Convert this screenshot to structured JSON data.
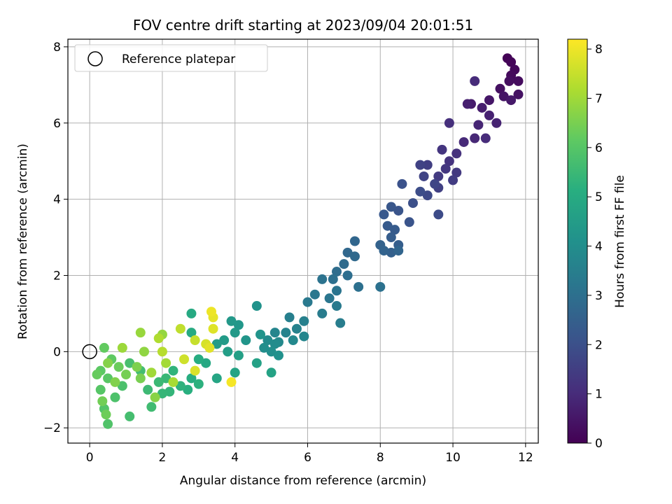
{
  "chart_data": {
    "type": "scatter",
    "title": "FOV centre drift starting at 2023/09/04 20:01:51",
    "xlabel": "Angular distance from reference (arcmin)",
    "ylabel": "Rotation from reference (arcmin)",
    "xlim": [
      -0.6,
      12.35
    ],
    "ylim": [
      -2.4,
      8.2
    ],
    "xticks": [
      0,
      2,
      4,
      6,
      8,
      10,
      12
    ],
    "yticks": [
      -2,
      0,
      2,
      4,
      6,
      8
    ],
    "xtick_labels": [
      "0",
      "2",
      "4",
      "6",
      "8",
      "10",
      "12"
    ],
    "ytick_labels": [
      "−2",
      "0",
      "2",
      "4",
      "6",
      "8"
    ],
    "grid": true,
    "legend": {
      "placement": "top-left",
      "entries": [
        {
          "label": "Reference platepar",
          "marker": "open-circle",
          "x": 0,
          "y": 0
        }
      ]
    },
    "colorbar": {
      "label": "Hours from first FF file",
      "colormap": "viridis",
      "range": [
        0,
        8.2
      ],
      "ticks": [
        0,
        1,
        2,
        3,
        4,
        5,
        6,
        7,
        8
      ],
      "tick_labels": [
        "0",
        "1",
        "2",
        "3",
        "4",
        "5",
        "6",
        "7",
        "8"
      ]
    },
    "series": [
      {
        "value_key": "hours",
        "points": [
          {
            "x": 11.5,
            "y": 7.7,
            "h": 0.05
          },
          {
            "x": 11.6,
            "y": 7.6,
            "h": 0.1
          },
          {
            "x": 11.7,
            "y": 7.4,
            "h": 0.15
          },
          {
            "x": 11.6,
            "y": 7.25,
            "h": 0.2
          },
          {
            "x": 11.8,
            "y": 7.1,
            "h": 0.25
          },
          {
            "x": 11.55,
            "y": 7.1,
            "h": 0.3
          },
          {
            "x": 11.3,
            "y": 6.9,
            "h": 0.35
          },
          {
            "x": 11.8,
            "y": 6.75,
            "h": 0.4
          },
          {
            "x": 11.4,
            "y": 6.7,
            "h": 0.45
          },
          {
            "x": 11.0,
            "y": 6.6,
            "h": 0.5
          },
          {
            "x": 11.6,
            "y": 6.6,
            "h": 0.55
          },
          {
            "x": 10.5,
            "y": 6.5,
            "h": 0.6
          },
          {
            "x": 10.8,
            "y": 6.4,
            "h": 0.65
          },
          {
            "x": 10.4,
            "y": 6.5,
            "h": 0.7
          },
          {
            "x": 11.0,
            "y": 6.2,
            "h": 0.75
          },
          {
            "x": 11.2,
            "y": 6.0,
            "h": 0.8
          },
          {
            "x": 10.7,
            "y": 5.95,
            "h": 0.85
          },
          {
            "x": 10.6,
            "y": 5.6,
            "h": 0.9
          },
          {
            "x": 10.3,
            "y": 5.5,
            "h": 0.95
          },
          {
            "x": 10.6,
            "y": 7.1,
            "h": 1.0
          },
          {
            "x": 10.9,
            "y": 5.6,
            "h": 1.0
          },
          {
            "x": 9.9,
            "y": 6.0,
            "h": 1.1
          },
          {
            "x": 10.1,
            "y": 5.2,
            "h": 1.15
          },
          {
            "x": 9.9,
            "y": 5.0,
            "h": 1.2
          },
          {
            "x": 9.7,
            "y": 5.3,
            "h": 1.25
          },
          {
            "x": 9.8,
            "y": 4.8,
            "h": 1.3
          },
          {
            "x": 10.1,
            "y": 4.7,
            "h": 1.35
          },
          {
            "x": 9.6,
            "y": 4.6,
            "h": 1.4
          },
          {
            "x": 10.0,
            "y": 4.5,
            "h": 1.45
          },
          {
            "x": 9.3,
            "y": 4.9,
            "h": 1.5
          },
          {
            "x": 9.6,
            "y": 4.3,
            "h": 1.55
          },
          {
            "x": 9.1,
            "y": 4.9,
            "h": 1.6
          },
          {
            "x": 9.2,
            "y": 4.6,
            "h": 1.65
          },
          {
            "x": 9.5,
            "y": 4.4,
            "h": 1.7
          },
          {
            "x": 9.3,
            "y": 4.1,
            "h": 1.8
          },
          {
            "x": 9.6,
            "y": 3.6,
            "h": 1.85
          },
          {
            "x": 9.1,
            "y": 4.2,
            "h": 1.9
          },
          {
            "x": 8.9,
            "y": 3.9,
            "h": 2.0
          },
          {
            "x": 8.6,
            "y": 4.4,
            "h": 2.05
          },
          {
            "x": 8.8,
            "y": 3.4,
            "h": 2.1
          },
          {
            "x": 8.5,
            "y": 3.7,
            "h": 2.15
          },
          {
            "x": 8.3,
            "y": 3.8,
            "h": 2.2
          },
          {
            "x": 8.1,
            "y": 3.6,
            "h": 2.25
          },
          {
            "x": 8.2,
            "y": 3.3,
            "h": 2.3
          },
          {
            "x": 8.4,
            "y": 3.2,
            "h": 2.35
          },
          {
            "x": 8.3,
            "y": 3.0,
            "h": 2.4
          },
          {
            "x": 8.5,
            "y": 2.8,
            "h": 2.45
          },
          {
            "x": 8.3,
            "y": 2.6,
            "h": 2.5
          },
          {
            "x": 8.0,
            "y": 2.8,
            "h": 2.55
          },
          {
            "x": 8.1,
            "y": 2.65,
            "h": 2.6
          },
          {
            "x": 8.5,
            "y": 2.65,
            "h": 2.65
          },
          {
            "x": 7.3,
            "y": 2.9,
            "h": 2.7
          },
          {
            "x": 7.1,
            "y": 2.6,
            "h": 2.75
          },
          {
            "x": 7.3,
            "y": 2.5,
            "h": 2.8
          },
          {
            "x": 7.0,
            "y": 2.3,
            "h": 2.85
          },
          {
            "x": 6.8,
            "y": 2.1,
            "h": 2.9
          },
          {
            "x": 7.1,
            "y": 2.0,
            "h": 2.95
          },
          {
            "x": 6.7,
            "y": 1.9,
            "h": 3.0
          },
          {
            "x": 7.4,
            "y": 1.7,
            "h": 3.0
          },
          {
            "x": 8.0,
            "y": 1.7,
            "h": 3.05
          },
          {
            "x": 6.4,
            "y": 1.9,
            "h": 3.1
          },
          {
            "x": 6.8,
            "y": 1.6,
            "h": 3.15
          },
          {
            "x": 6.6,
            "y": 1.4,
            "h": 3.2
          },
          {
            "x": 6.2,
            "y": 1.5,
            "h": 3.25
          },
          {
            "x": 6.0,
            "y": 1.3,
            "h": 3.3
          },
          {
            "x": 6.8,
            "y": 1.2,
            "h": 3.35
          },
          {
            "x": 6.4,
            "y": 1.0,
            "h": 3.4
          },
          {
            "x": 6.9,
            "y": 0.75,
            "h": 3.45
          },
          {
            "x": 5.5,
            "y": 0.9,
            "h": 3.5
          },
          {
            "x": 5.9,
            "y": 0.8,
            "h": 3.55
          },
          {
            "x": 5.7,
            "y": 0.6,
            "h": 3.6
          },
          {
            "x": 5.4,
            "y": 0.5,
            "h": 3.65
          },
          {
            "x": 5.1,
            "y": 0.5,
            "h": 3.7
          },
          {
            "x": 5.9,
            "y": 0.4,
            "h": 3.75
          },
          {
            "x": 5.6,
            "y": 0.3,
            "h": 3.8
          },
          {
            "x": 5.2,
            "y": 0.25,
            "h": 3.85
          },
          {
            "x": 4.9,
            "y": 0.3,
            "h": 3.9
          },
          {
            "x": 5.1,
            "y": 0.2,
            "h": 3.95
          },
          {
            "x": 4.8,
            "y": 0.1,
            "h": 4.0
          },
          {
            "x": 5.0,
            "y": 0.0,
            "h": 4.05
          },
          {
            "x": 5.2,
            "y": -0.1,
            "h": 4.1
          },
          {
            "x": 4.6,
            "y": 1.2,
            "h": 4.15
          },
          {
            "x": 4.7,
            "y": 0.45,
            "h": 4.2
          },
          {
            "x": 4.3,
            "y": 0.3,
            "h": 4.25
          },
          {
            "x": 4.1,
            "y": 0.7,
            "h": 4.3
          },
          {
            "x": 3.9,
            "y": 0.8,
            "h": 4.35
          },
          {
            "x": 4.0,
            "y": 0.5,
            "h": 4.4
          },
          {
            "x": 3.7,
            "y": 0.3,
            "h": 4.45
          },
          {
            "x": 3.5,
            "y": 0.2,
            "h": 4.5
          },
          {
            "x": 3.8,
            "y": 0.0,
            "h": 4.55
          },
          {
            "x": 4.1,
            "y": -0.1,
            "h": 4.6
          },
          {
            "x": 4.6,
            "y": -0.3,
            "h": 4.65
          },
          {
            "x": 5.0,
            "y": -0.55,
            "h": 4.7
          },
          {
            "x": 4.0,
            "y": -0.55,
            "h": 4.75
          },
          {
            "x": 3.5,
            "y": -0.7,
            "h": 4.8
          },
          {
            "x": 3.2,
            "y": -0.3,
            "h": 4.9
          },
          {
            "x": 2.8,
            "y": 1.0,
            "h": 4.95
          },
          {
            "x": 2.8,
            "y": 0.5,
            "h": 5.0
          },
          {
            "x": 3.0,
            "y": -0.2,
            "h": 5.05
          },
          {
            "x": 2.8,
            "y": -0.7,
            "h": 5.1
          },
          {
            "x": 2.7,
            "y": -1.0,
            "h": 5.15
          },
          {
            "x": 3.0,
            "y": -0.85,
            "h": 5.2
          },
          {
            "x": 2.5,
            "y": -0.9,
            "h": 5.25
          },
          {
            "x": 2.3,
            "y": -0.5,
            "h": 5.3
          },
          {
            "x": 2.2,
            "y": -1.05,
            "h": 5.35
          },
          {
            "x": 2.0,
            "y": -1.1,
            "h": 5.4
          },
          {
            "x": 2.1,
            "y": -0.7,
            "h": 5.45
          },
          {
            "x": 1.9,
            "y": -0.8,
            "h": 5.5
          },
          {
            "x": 1.6,
            "y": -1.0,
            "h": 5.55
          },
          {
            "x": 1.7,
            "y": -1.45,
            "h": 5.6
          },
          {
            "x": 1.4,
            "y": -0.5,
            "h": 5.65
          },
          {
            "x": 1.1,
            "y": -1.7,
            "h": 5.7
          },
          {
            "x": 1.1,
            "y": -0.3,
            "h": 5.75
          },
          {
            "x": 0.9,
            "y": -0.9,
            "h": 5.8
          },
          {
            "x": 0.7,
            "y": -1.2,
            "h": 5.85
          },
          {
            "x": 0.5,
            "y": -1.9,
            "h": 5.9
          },
          {
            "x": 0.4,
            "y": -1.5,
            "h": 5.95
          },
          {
            "x": 0.3,
            "y": -1.0,
            "h": 6.0
          },
          {
            "x": 0.5,
            "y": -0.7,
            "h": 6.05
          },
          {
            "x": 0.3,
            "y": -0.5,
            "h": 6.1
          },
          {
            "x": 0.6,
            "y": -0.2,
            "h": 6.15
          },
          {
            "x": 0.4,
            "y": 0.1,
            "h": 6.2
          },
          {
            "x": 0.2,
            "y": -0.6,
            "h": 6.25
          },
          {
            "x": 0.8,
            "y": -0.4,
            "h": 6.3
          },
          {
            "x": 0.45,
            "y": -1.65,
            "h": 6.35
          },
          {
            "x": 0.35,
            "y": -1.3,
            "h": 6.4
          },
          {
            "x": 1.0,
            "y": -0.6,
            "h": 6.45
          },
          {
            "x": 1.4,
            "y": -0.7,
            "h": 6.5
          },
          {
            "x": 1.3,
            "y": -0.4,
            "h": 6.55
          },
          {
            "x": 0.7,
            "y": -0.8,
            "h": 6.6
          },
          {
            "x": 0.5,
            "y": -0.3,
            "h": 6.65
          },
          {
            "x": 1.8,
            "y": -1.2,
            "h": 6.7
          },
          {
            "x": 1.5,
            "y": 0.0,
            "h": 6.8
          },
          {
            "x": 2.0,
            "y": 0.45,
            "h": 6.85
          },
          {
            "x": 1.4,
            "y": 0.5,
            "h": 6.9
          },
          {
            "x": 0.9,
            "y": 0.1,
            "h": 6.95
          },
          {
            "x": 1.7,
            "y": -0.55,
            "h": 7.0
          },
          {
            "x": 2.1,
            "y": -0.3,
            "h": 7.05
          },
          {
            "x": 2.3,
            "y": -0.8,
            "h": 7.1
          },
          {
            "x": 1.9,
            "y": 0.35,
            "h": 7.2
          },
          {
            "x": 2.0,
            "y": 0.0,
            "h": 7.3
          },
          {
            "x": 2.5,
            "y": 0.6,
            "h": 7.4
          },
          {
            "x": 2.9,
            "y": 0.3,
            "h": 7.5
          },
          {
            "x": 2.6,
            "y": -0.2,
            "h": 7.6
          },
          {
            "x": 3.2,
            "y": 0.2,
            "h": 7.7
          },
          {
            "x": 2.9,
            "y": -0.5,
            "h": 7.75
          },
          {
            "x": 3.4,
            "y": 0.6,
            "h": 7.8
          },
          {
            "x": 3.3,
            "y": 0.1,
            "h": 7.85
          },
          {
            "x": 3.4,
            "y": 0.9,
            "h": 7.9
          },
          {
            "x": 3.35,
            "y": 1.05,
            "h": 8.0
          },
          {
            "x": 3.9,
            "y": -0.8,
            "h": 8.1
          }
        ]
      }
    ]
  }
}
